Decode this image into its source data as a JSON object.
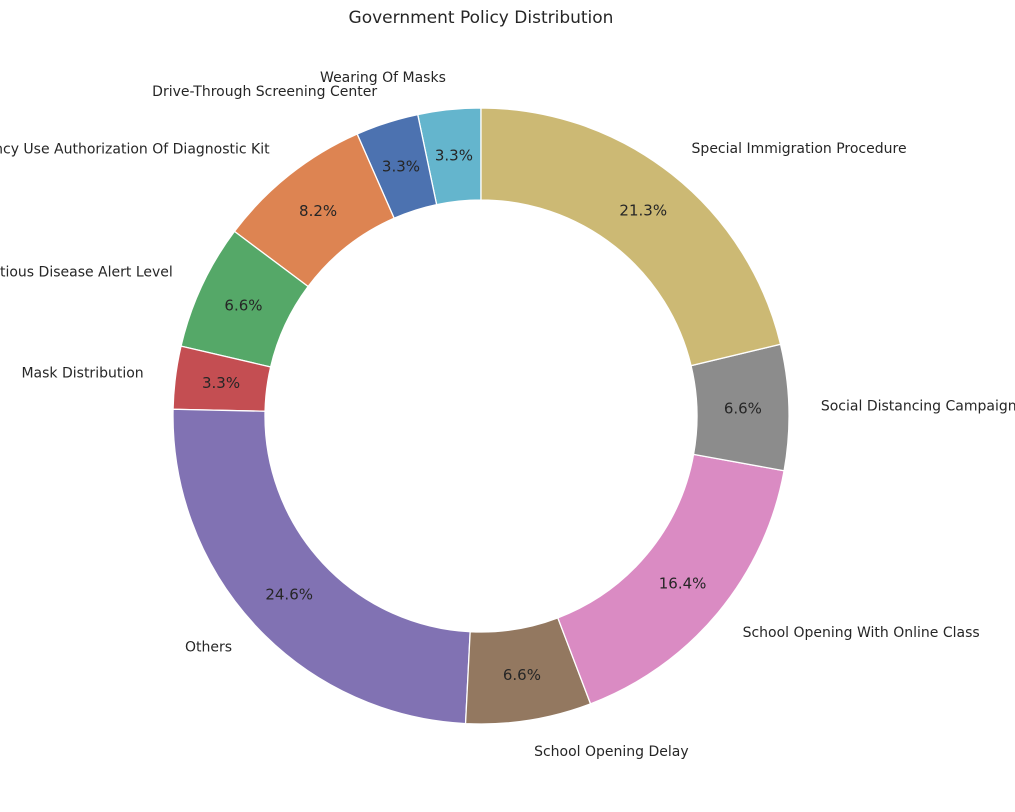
{
  "chart_data": {
    "type": "pie",
    "donut": true,
    "title": "Government Policy Distribution",
    "start_angle_deg": 90,
    "direction": "counterclockwise",
    "slices": [
      {
        "label": "Wearing Of Masks",
        "value": 3.3,
        "pct_label": "3.3%",
        "color": "#64b5cd"
      },
      {
        "label": "Drive-Through Screening Center",
        "value": 3.3,
        "pct_label": "3.3%",
        "color": "#4c72b0"
      },
      {
        "label": "Emergency Use Authorization Of Diagnostic Kit",
        "value": 8.2,
        "pct_label": "8.2%",
        "color": "#dd8452"
      },
      {
        "label": "Infectious Disease Alert Level",
        "value": 6.6,
        "pct_label": "6.6%",
        "color": "#55a868"
      },
      {
        "label": "Mask Distribution",
        "value": 3.3,
        "pct_label": "3.3%",
        "color": "#c44e52"
      },
      {
        "label": "Others",
        "value": 24.6,
        "pct_label": "24.6%",
        "color": "#8172b3"
      },
      {
        "label": "School Opening Delay",
        "value": 6.6,
        "pct_label": "6.6%",
        "color": "#937860"
      },
      {
        "label": "School Opening With Online Class",
        "value": 16.4,
        "pct_label": "16.4%",
        "color": "#da8bc3"
      },
      {
        "label": "Social Distancing Campaign",
        "value": 6.6,
        "pct_label": "6.6%",
        "color": "#8c8c8c"
      },
      {
        "label": "Special Immigration Procedure",
        "value": 21.3,
        "pct_label": "21.3%",
        "color": "#ccb974"
      }
    ]
  }
}
